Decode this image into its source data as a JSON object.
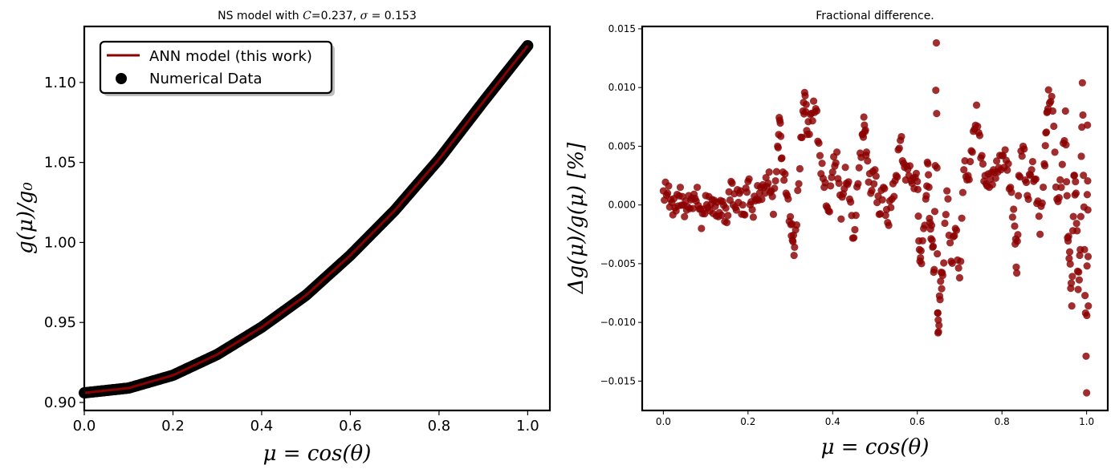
{
  "chart_data": [
    {
      "type": "line",
      "title": "NS model with C=0.237, σ = 0.153",
      "xlabel": "μ = cos(θ)",
      "ylabel": "g(μ)/g₀",
      "xlim": [
        0.0,
        1.05
      ],
      "ylim": [
        0.895,
        1.135
      ],
      "xticks": [
        "0.0",
        "0.2",
        "0.4",
        "0.6",
        "0.8",
        "1.0"
      ],
      "yticks": [
        "0.90",
        "0.95",
        "1.00",
        "1.05",
        "1.10"
      ],
      "legend": {
        "placement": "upper-left"
      },
      "grid": false,
      "series": [
        {
          "name": "ANN model (this work)",
          "kind": "line",
          "color": "#8b0000",
          "x": [
            0.0,
            0.1,
            0.2,
            0.3,
            0.4,
            0.5,
            0.6,
            0.7,
            0.8,
            0.9,
            1.0
          ],
          "y": [
            0.906,
            0.909,
            0.917,
            0.93,
            0.947,
            0.967,
            0.992,
            1.02,
            1.052,
            1.088,
            1.123
          ]
        },
        {
          "name": "Numerical Data",
          "kind": "scatter",
          "color": "#000000",
          "x": [
            0.0,
            0.1,
            0.2,
            0.3,
            0.4,
            0.5,
            0.6,
            0.7,
            0.8,
            0.9,
            1.0
          ],
          "y": [
            0.906,
            0.909,
            0.917,
            0.93,
            0.947,
            0.967,
            0.992,
            1.02,
            1.052,
            1.088,
            1.123
          ]
        }
      ]
    },
    {
      "type": "scatter",
      "title": "Fractional difference.",
      "xlabel": "μ = cos(θ)",
      "ylabel": "Δg(μ)/g(μ) [%]",
      "xlim": [
        -0.05,
        1.05
      ],
      "ylim": [
        -0.0175,
        0.0152
      ],
      "xticks": [
        "0.0",
        "0.2",
        "0.4",
        "0.6",
        "0.8",
        "1.0"
      ],
      "yticks": [
        "−0.015",
        "−0.010",
        "−0.005",
        "0.000",
        "0.005",
        "0.010",
        "0.015"
      ],
      "grid": false,
      "series": [
        {
          "color": "#8b0000",
          "points": [
            [
              0.0,
              0.0012
            ],
            [
              0.01,
              0.001
            ],
            [
              0.02,
              0.0002
            ],
            [
              0.03,
              -0.0005
            ],
            [
              0.04,
              0.0015
            ],
            [
              0.05,
              -0.001
            ],
            [
              0.06,
              0.0008
            ],
            [
              0.07,
              -0.0003
            ],
            [
              0.08,
              0.0015
            ],
            [
              0.09,
              -0.002
            ],
            [
              0.1,
              0.0008
            ],
            [
              0.11,
              -0.0005
            ],
            [
              0.12,
              0.0004
            ],
            [
              0.13,
              -0.001
            ],
            [
              0.14,
              0.0003
            ],
            [
              0.15,
              -0.0015
            ],
            [
              0.16,
              0.002
            ],
            [
              0.17,
              -0.0002
            ],
            [
              0.18,
              0.001
            ],
            [
              0.19,
              -0.0008
            ],
            [
              0.2,
              0.002
            ],
            [
              0.21,
              -0.0004
            ],
            [
              0.22,
              0.0005
            ],
            [
              0.23,
              0.0015
            ],
            [
              0.24,
              0.001
            ],
            [
              0.25,
              0.0028
            ],
            [
              0.26,
              -0.0008
            ],
            [
              0.27,
              0.005
            ],
            [
              0.275,
              0.0072
            ],
            [
              0.28,
              0.004
            ],
            [
              0.29,
              0.001
            ],
            [
              0.3,
              -0.001
            ],
            [
              0.305,
              -0.003
            ],
            [
              0.31,
              -0.0036
            ],
            [
              0.32,
              0.0018
            ],
            [
              0.33,
              0.008
            ],
            [
              0.335,
              0.0093
            ],
            [
              0.34,
              0.006
            ],
            [
              0.35,
              0.0078
            ],
            [
              0.36,
              0.0082
            ],
            [
              0.37,
              0.0042
            ],
            [
              0.38,
              0.0015
            ],
            [
              0.39,
              -0.0005
            ],
            [
              0.4,
              0.0028
            ],
            [
              0.41,
              0.0045
            ],
            [
              0.42,
              -0.0012
            ],
            [
              0.43,
              0.0032
            ],
            [
              0.44,
              0.0005
            ],
            [
              0.45,
              -0.0028
            ],
            [
              0.46,
              0.0018
            ],
            [
              0.47,
              0.006
            ],
            [
              0.475,
              0.0068
            ],
            [
              0.48,
              0.0045
            ],
            [
              0.49,
              0.001
            ],
            [
              0.5,
              0.003
            ],
            [
              0.51,
              -0.0008
            ],
            [
              0.52,
              0.0015
            ],
            [
              0.53,
              -0.0015
            ],
            [
              0.54,
              0.0005
            ],
            [
              0.55,
              0.0025
            ],
            [
              0.56,
              0.0055
            ],
            [
              0.57,
              0.0032
            ],
            [
              0.58,
              0.0025
            ],
            [
              0.59,
              0.0023
            ],
            [
              0.6,
              0.002
            ],
            [
              0.605,
              -0.0038
            ],
            [
              0.61,
              -0.005
            ],
            [
              0.62,
              0.0005
            ],
            [
              0.625,
              0.0035
            ],
            [
              0.63,
              -0.0015
            ],
            [
              0.635,
              -0.003
            ],
            [
              0.64,
              -0.0055
            ],
            [
              0.645,
              0.0138
            ],
            [
              0.648,
              -0.0092
            ],
            [
              0.65,
              -0.0108
            ],
            [
              0.655,
              -0.0065
            ],
            [
              0.66,
              -0.006
            ],
            [
              0.67,
              0.0012
            ],
            [
              0.68,
              -0.0048
            ],
            [
              0.69,
              -0.002
            ],
            [
              0.7,
              -0.0062
            ],
            [
              0.71,
              0.003
            ],
            [
              0.72,
              0.0025
            ],
            [
              0.73,
              0.0045
            ],
            [
              0.74,
              0.0085
            ],
            [
              0.75,
              0.004
            ],
            [
              0.76,
              0.0025
            ],
            [
              0.77,
              0.0015
            ],
            [
              0.78,
              0.003
            ],
            [
              0.79,
              0.0028
            ],
            [
              0.8,
              0.0042
            ],
            [
              0.81,
              0.0038
            ],
            [
              0.82,
              0.0015
            ],
            [
              0.83,
              -0.0018
            ],
            [
              0.835,
              -0.0058
            ],
            [
              0.84,
              0.0025
            ],
            [
              0.85,
              0.005
            ],
            [
              0.86,
              0.0008
            ],
            [
              0.87,
              0.003
            ],
            [
              0.88,
              0.0022
            ],
            [
              0.89,
              -0.0025
            ],
            [
              0.9,
              0.0035
            ],
            [
              0.905,
              0.0062
            ],
            [
              0.91,
              0.0098
            ],
            [
              0.92,
              0.008
            ],
            [
              0.93,
              0.0005
            ],
            [
              0.94,
              0.0015
            ],
            [
              0.95,
              0.008
            ],
            [
              0.955,
              -0.0028
            ],
            [
              0.96,
              -0.004
            ],
            [
              0.965,
              -0.0086
            ],
            [
              0.97,
              0.0025
            ],
            [
              0.975,
              0.001
            ],
            [
              0.98,
              -0.0072
            ],
            [
              0.985,
              -0.0038
            ],
            [
              0.99,
              0.0104
            ],
            [
              0.995,
              -0.0038
            ],
            [
              1.0,
              -0.016
            ],
            [
              1.002,
              0.0068
            ],
            [
              1.004,
              -0.0086
            ]
          ]
        }
      ]
    }
  ]
}
